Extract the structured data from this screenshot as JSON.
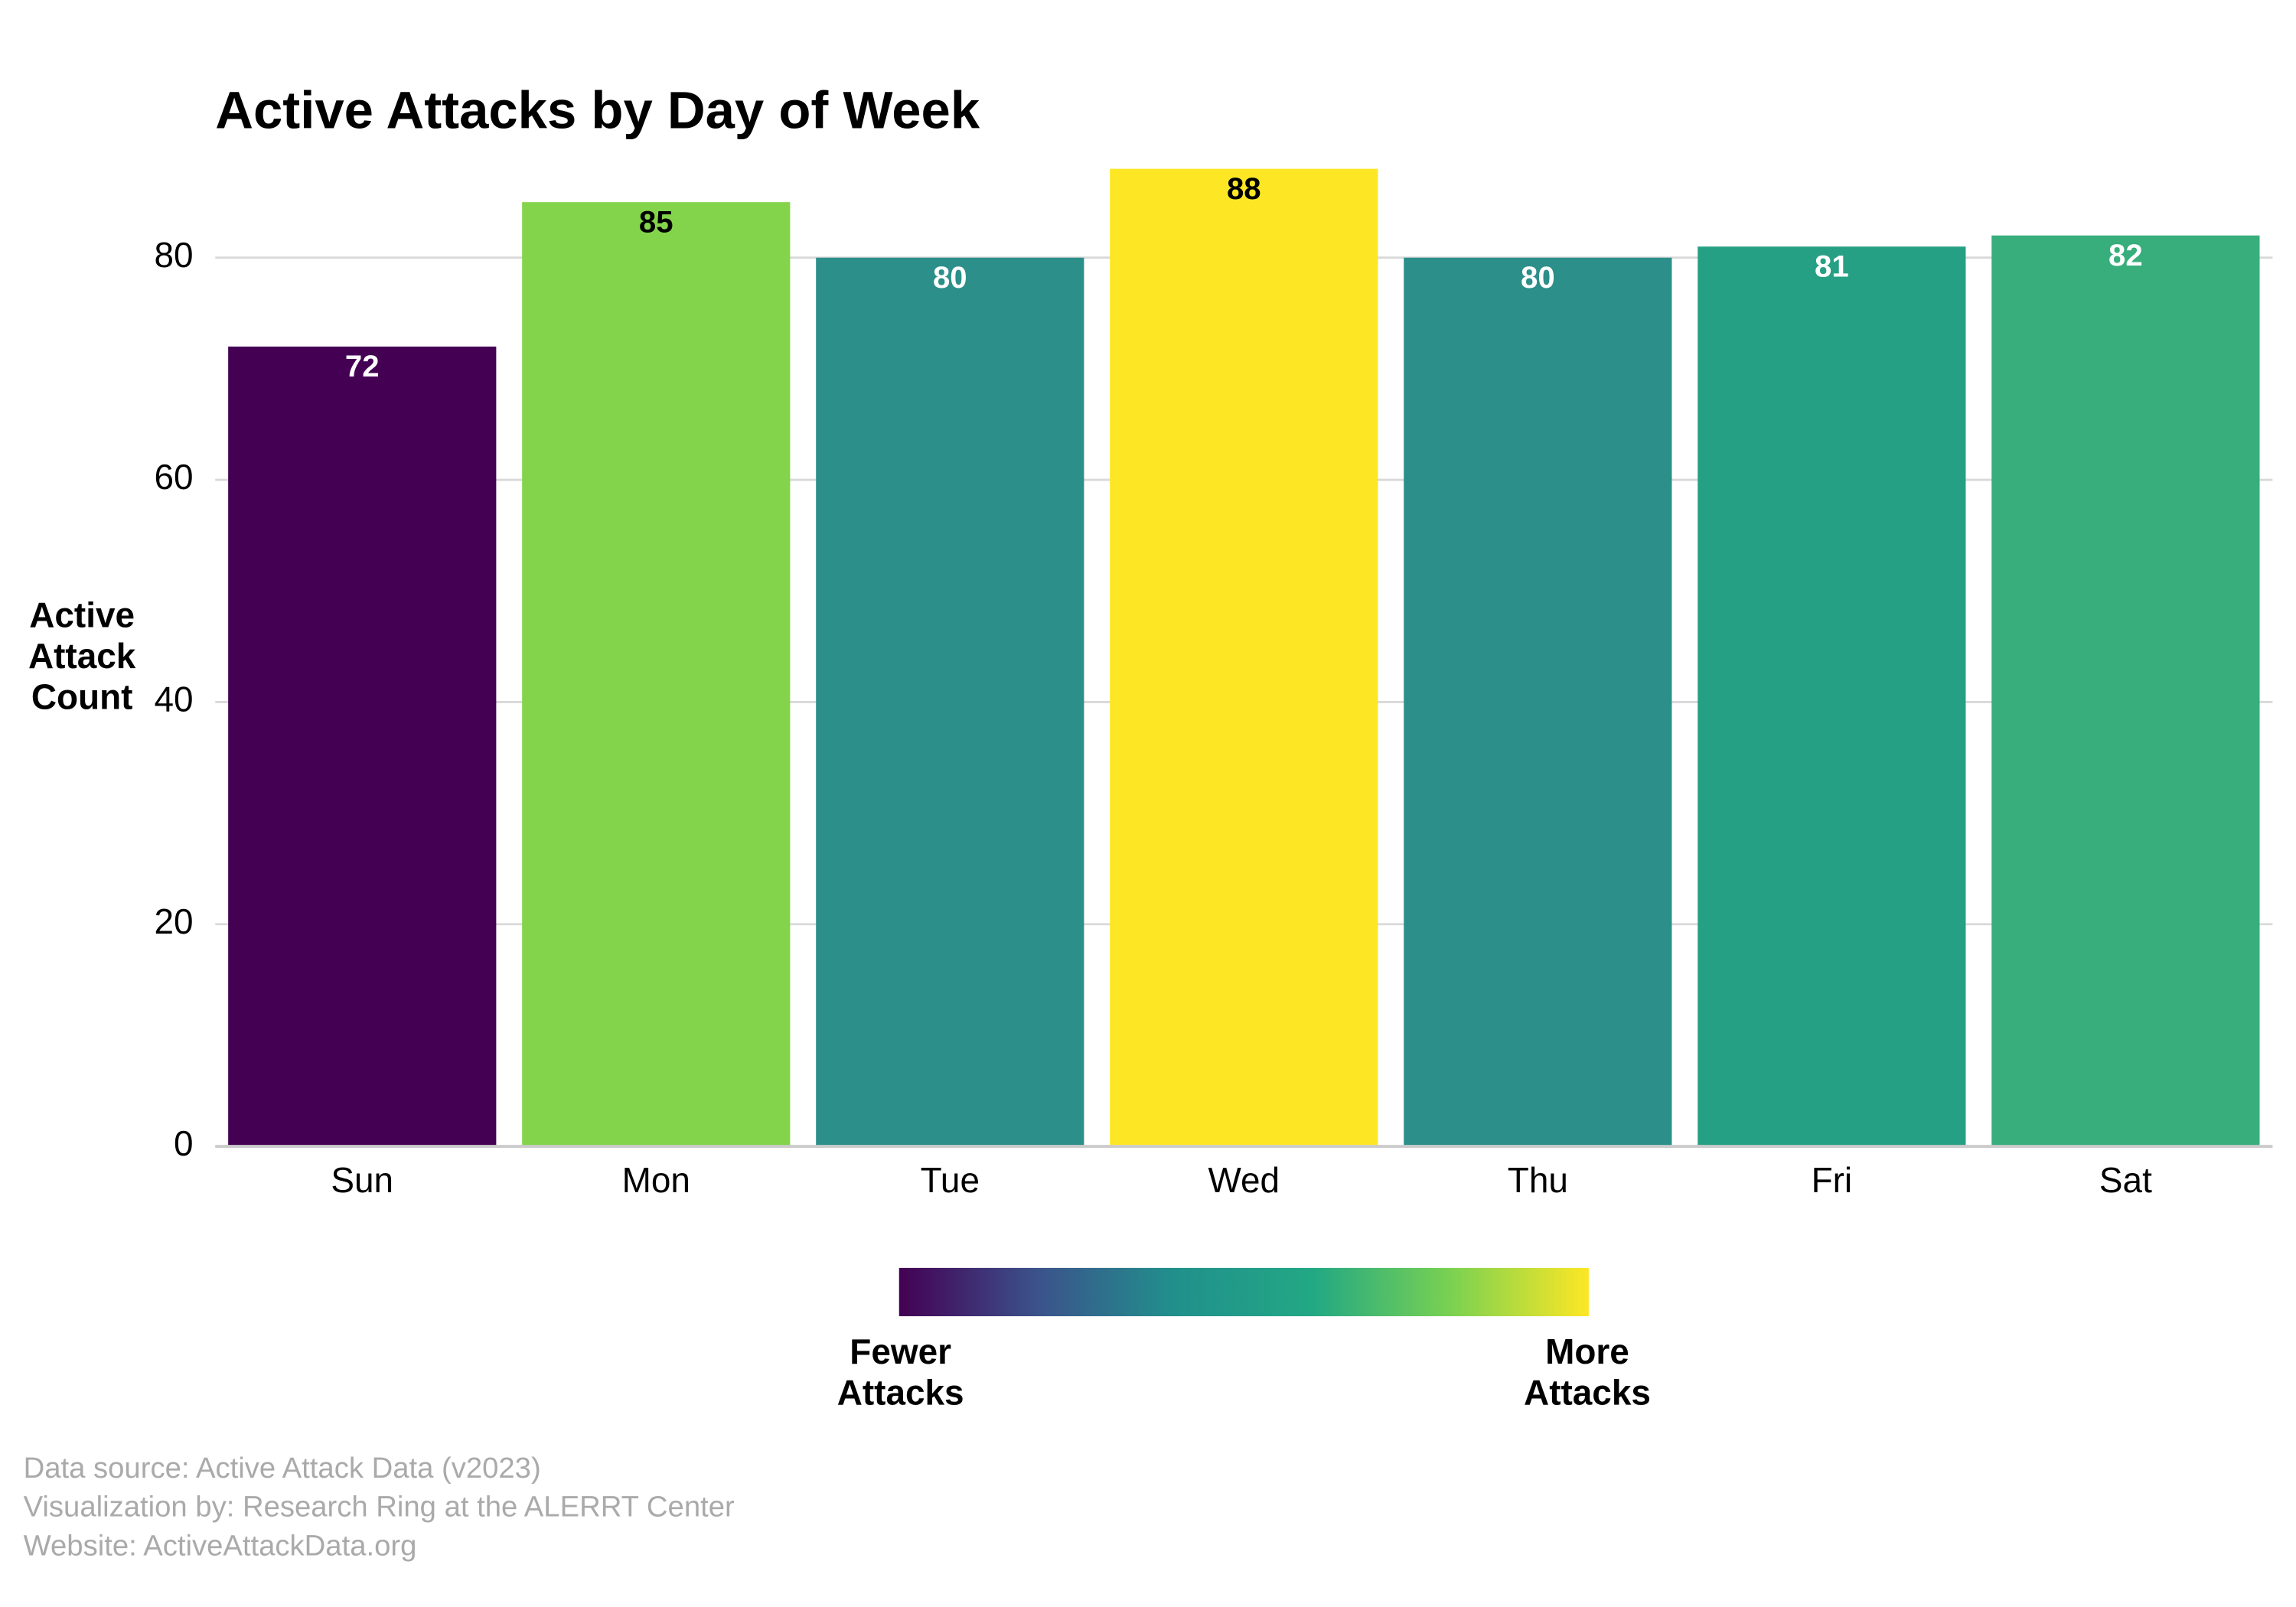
{
  "chart_data": {
    "type": "bar",
    "title": "Active Attacks by Day of Week",
    "y_label": [
      "Active",
      "Attack",
      "Count"
    ],
    "categories": [
      "Sun",
      "Mon",
      "Tue",
      "Wed",
      "Thu",
      "Fri",
      "Sat"
    ],
    "values": [
      72,
      85,
      80,
      88,
      80,
      81,
      82
    ],
    "colors": [
      "#440154",
      "#84d44b",
      "#2c8f89",
      "#fde725",
      "#2c8f89",
      "#26a085",
      "#37ae7c"
    ],
    "ylim": [
      0,
      90
    ],
    "yticks": [
      0,
      20,
      40,
      60,
      80
    ],
    "grid": true,
    "colorbar": {
      "colors": [
        "#440154",
        "#3b528b",
        "#21908c",
        "#22a884",
        "#7ad151",
        "#fde725"
      ],
      "low_label": [
        "Fewer",
        "Attacks"
      ],
      "high_label": [
        "More",
        "Attacks"
      ]
    }
  },
  "footnotes": [
    "Data source: Active Attack Data (v2023)",
    "Visualization by: Research Ring at the ALERRT Center",
    "Website: ActiveAttackData.org"
  ]
}
